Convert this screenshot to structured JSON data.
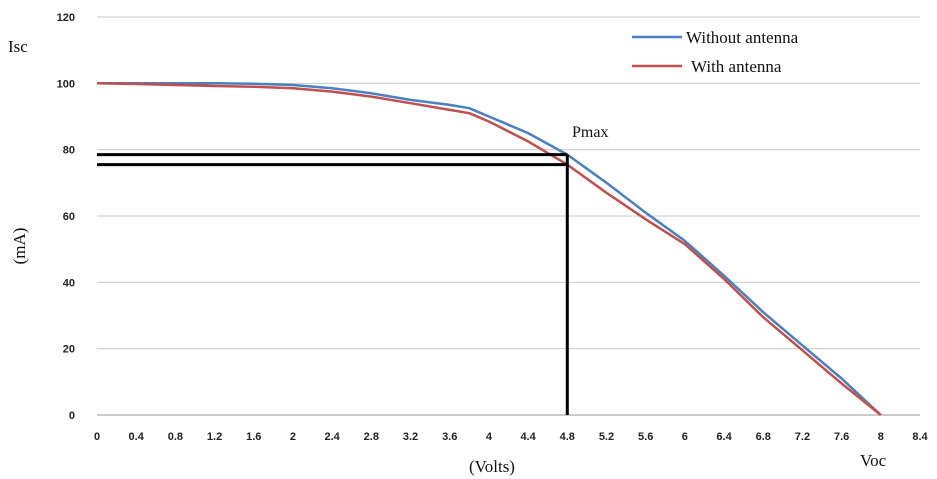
{
  "chart_data": {
    "type": "line",
    "ylabel_top": "Isc",
    "ylabel": "(mA)",
    "xlabel": "(Volts)",
    "xlabel_end": "Voc",
    "xlim": [
      0,
      8.4
    ],
    "ylim": [
      0,
      120
    ],
    "xticks": [
      "0",
      "0.4",
      "0.8",
      "1.2",
      "1.6",
      "2",
      "2.4",
      "2.8",
      "3.2",
      "3.6",
      "4",
      "4.4",
      "4.8",
      "5.2",
      "5.6",
      "6",
      "6.4",
      "6.8",
      "7.2",
      "7.6",
      "8",
      "8.4"
    ],
    "yticks": [
      "0",
      "20",
      "40",
      "60",
      "80",
      "100",
      "120"
    ],
    "grid": true,
    "legend_position": "top-right",
    "series": [
      {
        "name": "Without antenna",
        "color": "#4a7fc1",
        "x": [
          0,
          0.4,
          0.8,
          1.2,
          1.6,
          2.0,
          2.4,
          2.8,
          3.2,
          3.6,
          3.8,
          4.0,
          4.4,
          4.8,
          5.2,
          5.6,
          6.0,
          6.4,
          6.8,
          7.2,
          7.6,
          8.0
        ],
        "y": [
          100,
          100,
          100,
          100,
          99.9,
          99.5,
          98.5,
          97,
          95,
          93.5,
          92.5,
          90,
          85,
          78.5,
          70,
          61,
          52.5,
          42,
          31,
          21,
          11,
          0
        ]
      },
      {
        "name": "With antenna",
        "color": "#c0504d",
        "x": [
          0,
          0.4,
          0.8,
          1.2,
          1.6,
          2.0,
          2.4,
          2.8,
          3.2,
          3.6,
          3.8,
          4.0,
          4.4,
          4.8,
          5.2,
          5.6,
          6.0,
          6.4,
          6.8,
          7.2,
          7.6,
          8.0
        ],
        "y": [
          100,
          99.8,
          99.5,
          99.2,
          99,
          98.5,
          97.5,
          96,
          94,
          92,
          91,
          88.5,
          82.5,
          75.5,
          67,
          59,
          51.5,
          41,
          29.5,
          19.5,
          9.5,
          0
        ]
      }
    ],
    "annotations": [
      {
        "text": "Pmax",
        "x": 4.8,
        "y": 78.5
      }
    ],
    "reference_lines": {
      "vertical_x": 4.8,
      "horizontal_y": [
        78.5,
        75.5
      ]
    }
  }
}
